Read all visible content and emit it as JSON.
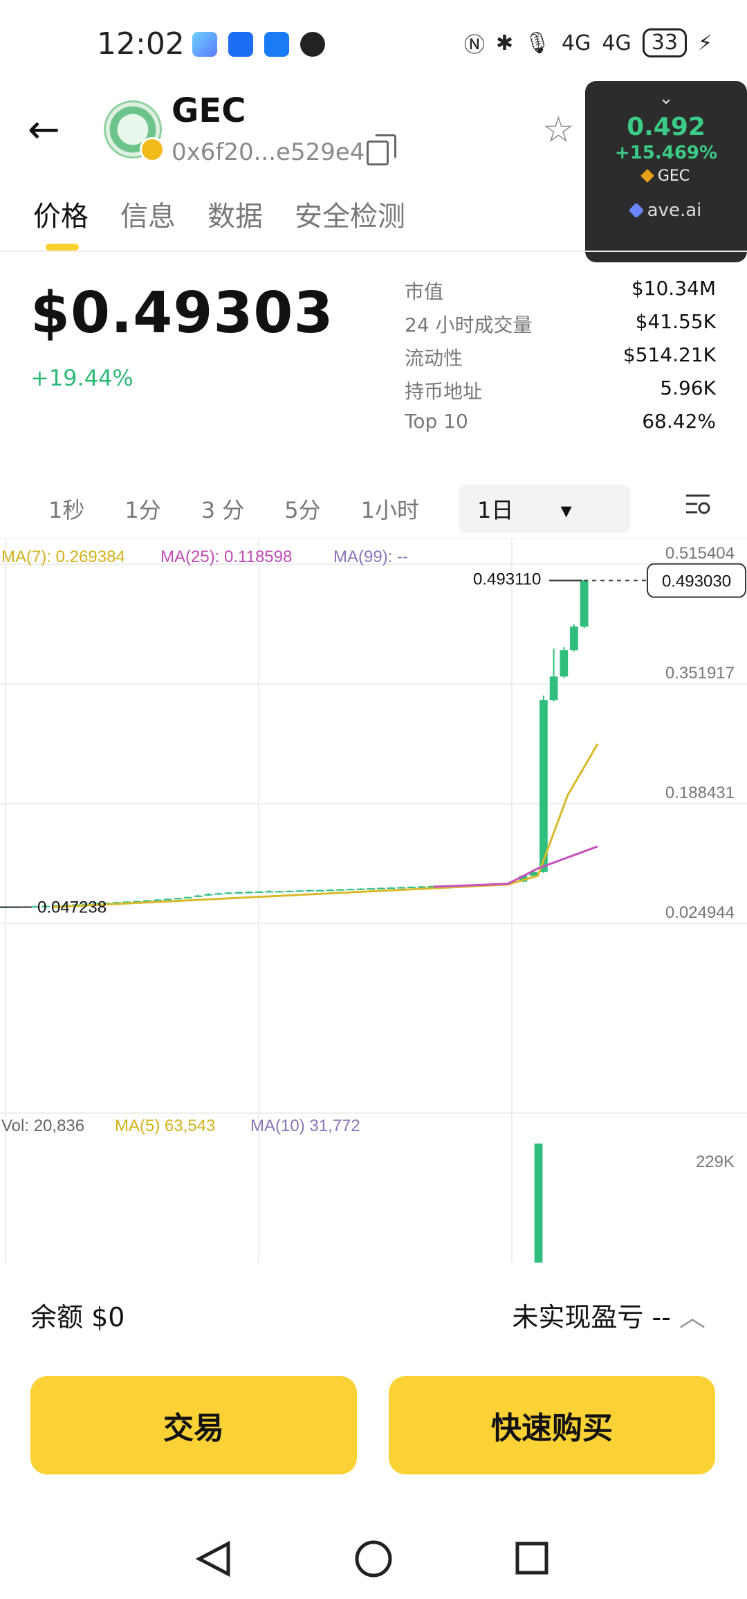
{
  "status_bar": {
    "time": "12:02",
    "net1": "4G",
    "net2": "4G",
    "battery": "33",
    "app_icons": [
      "ave-app-icon",
      "blue-app-icon",
      "feishu-icon",
      "qq-icon"
    ]
  },
  "header": {
    "token_name": "GEC",
    "address": "0x6f20...e529e4"
  },
  "widget": {
    "price": "0.492",
    "change": "+15.469%",
    "symbol": "GEC",
    "source": "ave.ai"
  },
  "tabs": [
    "价格",
    "信息",
    "数据",
    "安全检测"
  ],
  "price": {
    "value": "$0.49303",
    "change": "+19.44%"
  },
  "stats": [
    {
      "label": "市值",
      "value": "$10.34M"
    },
    {
      "label": "24 小时成交量",
      "value": "$41.55K"
    },
    {
      "label": "流动性",
      "value": "$514.21K"
    },
    {
      "label": "持币地址",
      "value": "5.96K"
    },
    {
      "label": "Top 10",
      "value": "68.42%"
    }
  ],
  "timeframes": [
    "1秒",
    "1分",
    "3 分",
    "5分",
    "1小时"
  ],
  "selected_timeframe": "1日",
  "chart_data": {
    "type": "candlestick",
    "ma_legend": {
      "ma7": "MA(7): 0.269384",
      "ma25": "MA(25): 0.118598",
      "ma99": "MA(99): --"
    },
    "y_ticks": [
      "0.515404",
      "0.351917",
      "0.188431",
      "0.024944"
    ],
    "y_tick_values": [
      0.515404,
      0.351917,
      0.188431,
      0.024944
    ],
    "high_label": "0.493110",
    "low_label": "0.047238",
    "current_label": "0.493030",
    "current_value": 0.49303,
    "candles": [
      {
        "o": 0.0472,
        "c": 0.0476,
        "h": 0.048,
        "l": 0.047
      },
      {
        "o": 0.0476,
        "c": 0.0478,
        "h": 0.0482,
        "l": 0.0474
      },
      {
        "o": 0.0478,
        "c": 0.0481,
        "h": 0.0485,
        "l": 0.0476
      },
      {
        "o": 0.0481,
        "c": 0.0485,
        "h": 0.0488,
        "l": 0.0479
      },
      {
        "o": 0.0485,
        "c": 0.049,
        "h": 0.0494,
        "l": 0.0483
      },
      {
        "o": 0.049,
        "c": 0.0496,
        "h": 0.05,
        "l": 0.0488
      },
      {
        "o": 0.0496,
        "c": 0.0502,
        "h": 0.0506,
        "l": 0.0494
      },
      {
        "o": 0.0502,
        "c": 0.051,
        "h": 0.0515,
        "l": 0.05
      },
      {
        "o": 0.051,
        "c": 0.0518,
        "h": 0.0522,
        "l": 0.0508
      },
      {
        "o": 0.0518,
        "c": 0.0525,
        "h": 0.053,
        "l": 0.0516
      },
      {
        "o": 0.0525,
        "c": 0.0532,
        "h": 0.0536,
        "l": 0.0523
      },
      {
        "o": 0.0532,
        "c": 0.054,
        "h": 0.0545,
        "l": 0.053
      },
      {
        "o": 0.054,
        "c": 0.0548,
        "h": 0.0552,
        "l": 0.0538
      },
      {
        "o": 0.0548,
        "c": 0.0556,
        "h": 0.056,
        "l": 0.0546
      },
      {
        "o": 0.0556,
        "c": 0.0565,
        "h": 0.057,
        "l": 0.0554
      },
      {
        "o": 0.0565,
        "c": 0.0575,
        "h": 0.058,
        "l": 0.0563
      },
      {
        "o": 0.0575,
        "c": 0.0585,
        "h": 0.059,
        "l": 0.0573
      },
      {
        "o": 0.0585,
        "c": 0.0596,
        "h": 0.06,
        "l": 0.0583
      },
      {
        "o": 0.0596,
        "c": 0.061,
        "h": 0.0615,
        "l": 0.0594
      },
      {
        "o": 0.061,
        "c": 0.063,
        "h": 0.064,
        "l": 0.0608
      },
      {
        "o": 0.063,
        "c": 0.065,
        "h": 0.066,
        "l": 0.0625
      },
      {
        "o": 0.065,
        "c": 0.066,
        "h": 0.067,
        "l": 0.0645
      },
      {
        "o": 0.066,
        "c": 0.067,
        "h": 0.068,
        "l": 0.0655
      },
      {
        "o": 0.067,
        "c": 0.0675,
        "h": 0.0685,
        "l": 0.0665
      },
      {
        "o": 0.0675,
        "c": 0.068,
        "h": 0.0688,
        "l": 0.067
      },
      {
        "o": 0.068,
        "c": 0.0685,
        "h": 0.069,
        "l": 0.0675
      },
      {
        "o": 0.068,
        "c": 0.069,
        "h": 0.07,
        "l": 0.0675
      },
      {
        "o": 0.0685,
        "c": 0.069,
        "h": 0.0695,
        "l": 0.068
      },
      {
        "o": 0.069,
        "c": 0.0695,
        "h": 0.07,
        "l": 0.0685
      },
      {
        "o": 0.069,
        "c": 0.07,
        "h": 0.0705,
        "l": 0.0685
      },
      {
        "o": 0.0695,
        "c": 0.0705,
        "h": 0.071,
        "l": 0.069
      },
      {
        "o": 0.07,
        "c": 0.0705,
        "h": 0.071,
        "l": 0.0695
      },
      {
        "o": 0.0705,
        "c": 0.071,
        "h": 0.0715,
        "l": 0.07
      },
      {
        "o": 0.071,
        "c": 0.0715,
        "h": 0.072,
        "l": 0.0705
      },
      {
        "o": 0.0715,
        "c": 0.072,
        "h": 0.0725,
        "l": 0.071
      },
      {
        "o": 0.072,
        "c": 0.0725,
        "h": 0.073,
        "l": 0.0715
      },
      {
        "o": 0.0725,
        "c": 0.073,
        "h": 0.0735,
        "l": 0.072
      },
      {
        "o": 0.073,
        "c": 0.0735,
        "h": 0.074,
        "l": 0.0725
      },
      {
        "o": 0.0735,
        "c": 0.074,
        "h": 0.0745,
        "l": 0.073
      },
      {
        "o": 0.074,
        "c": 0.0745,
        "h": 0.075,
        "l": 0.0735
      },
      {
        "o": 0.0745,
        "c": 0.075,
        "h": 0.0755,
        "l": 0.074
      },
      {
        "o": 0.075,
        "c": 0.0755,
        "h": 0.076,
        "l": 0.0745
      },
      {
        "o": 0.0755,
        "c": 0.076,
        "h": 0.0765,
        "l": 0.075
      },
      {
        "o": 0.076,
        "c": 0.0765,
        "h": 0.077,
        "l": 0.0755
      },
      {
        "o": 0.0765,
        "c": 0.077,
        "h": 0.0775,
        "l": 0.076
      },
      {
        "o": 0.077,
        "c": 0.0775,
        "h": 0.078,
        "l": 0.0765
      },
      {
        "o": 0.0775,
        "c": 0.078,
        "h": 0.0785,
        "l": 0.077
      },
      {
        "o": 0.078,
        "c": 0.0785,
        "h": 0.079,
        "l": 0.0775
      },
      {
        "o": 0.0785,
        "c": 0.079,
        "h": 0.0795,
        "l": 0.078
      },
      {
        "o": 0.079,
        "c": 0.0795,
        "h": 0.08,
        "l": 0.0785
      },
      {
        "o": 0.08,
        "c": 0.082,
        "h": 0.0825,
        "l": 0.0795
      },
      {
        "o": 0.082,
        "c": 0.09,
        "h": 0.091,
        "l": 0.0815
      },
      {
        "o": 0.09,
        "c": 0.095,
        "h": 0.096,
        "l": 0.089
      },
      {
        "o": 0.095,
        "c": 0.33,
        "h": 0.336,
        "l": 0.094
      },
      {
        "o": 0.33,
        "c": 0.362,
        "h": 0.4,
        "l": 0.328
      },
      {
        "o": 0.362,
        "c": 0.398,
        "h": 0.402,
        "l": 0.36
      },
      {
        "o": 0.398,
        "c": 0.43,
        "h": 0.433,
        "l": 0.396
      },
      {
        "o": 0.43,
        "c": 0.4931,
        "h": 0.4931,
        "l": 0.428
      }
    ],
    "ma7_line": [
      [
        0.07,
        0.0472
      ],
      [
        0.68,
        0.078
      ],
      [
        0.72,
        0.09
      ],
      [
        0.76,
        0.2
      ],
      [
        0.8,
        0.27
      ]
    ],
    "ma25_line": [
      [
        0.58,
        0.075
      ],
      [
        0.68,
        0.079
      ],
      [
        0.72,
        0.1
      ],
      [
        0.8,
        0.13
      ]
    ],
    "volume": {
      "legend": {
        "vol": "Vol: 20,836",
        "ma5": "MA(5) 63,543",
        "ma10": "MA(10) 31,772"
      },
      "y_tick": "229K",
      "y_tick_value": 229000,
      "bars": [
        {
          "i": 51,
          "v": 229000
        }
      ]
    }
  },
  "bottom": {
    "balance_label": "余额",
    "balance_value": "$0",
    "pnl_label": "未实现盈亏",
    "pnl_value": "--",
    "trade_button": "交易",
    "quick_buy_button": "快速购买"
  }
}
